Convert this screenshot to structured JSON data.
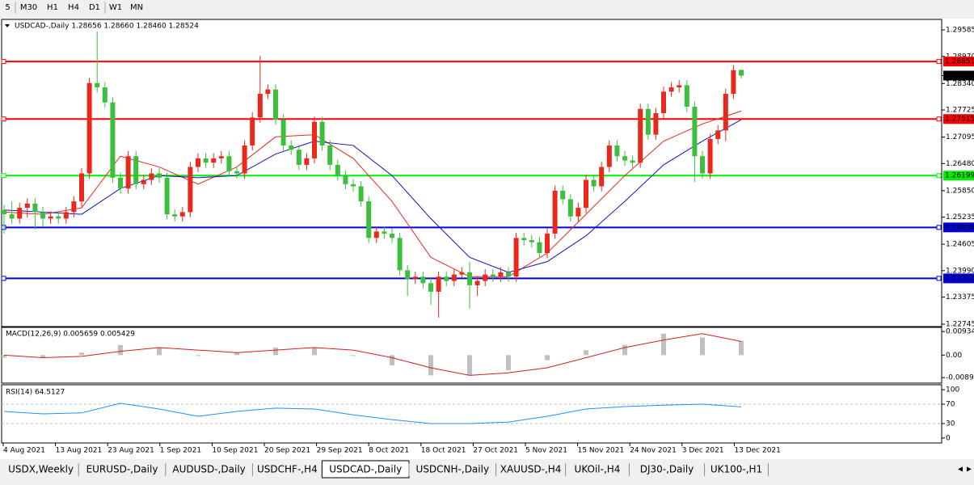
{
  "toolbar": [
    "5",
    "M30",
    "H1",
    "H4",
    "D1",
    "W1",
    "MN"
  ],
  "tabs": [
    {
      "label": "USDX,Weekly"
    },
    {
      "label": "EURUSD-,Daily"
    },
    {
      "label": "AUDUSD-,Daily"
    },
    {
      "label": "USDCHF-,H4"
    },
    {
      "label": "USDCAD-,Daily",
      "active": true
    },
    {
      "label": "USDCNH-,Daily"
    },
    {
      "label": "XAUUSD-,H4"
    },
    {
      "label": "UKOil-,H4"
    },
    {
      "label": "DJ30-,Daily"
    },
    {
      "label": "UK100-,H1"
    }
  ],
  "chart_data": {
    "type": "candlestick",
    "title": "USDCAD-,Daily  1.28656 1.28660 1.28460 1.28524",
    "up_color": "#e8291c",
    "down_color": "#3cbf3c",
    "ylim": [
      1.2269,
      1.2983
    ],
    "yticks": [
      1.29585,
      {
        "value": 1.2897,
        "label": "1.28970"
      },
      {
        "value": 1.2834,
        "label": "1.28340"
      },
      1.27725,
      1.27095,
      {
        "value": 1.2648,
        "label": "1.26480"
      },
      {
        "value": 1.2585,
        "label": "1.25850"
      },
      1.25235,
      {
        "value": 1.24605,
        "label": "1.24605"
      },
      {
        "value": 1.2399,
        "label": "1.23990"
      },
      1.23375,
      1.22745
    ],
    "levels": [
      {
        "value": 1.28851,
        "color": "#ff0000"
      },
      {
        "value": 1.27515,
        "color": "#ff0000"
      },
      {
        "value": 1.26199,
        "color": "#00ee00"
      },
      {
        "value": 1.24995,
        "color": "#0000dd"
      },
      {
        "value": 1.2381,
        "label": "1.23810",
        "color": "#0000dd"
      }
    ],
    "current_price": 1.28524,
    "xlabels": [
      "4 Aug 2021",
      "13 Aug 2021",
      "23 Aug 2021",
      "1 Sep 2021",
      "10 Sep 2021",
      "20 Sep 2021",
      "29 Sep 2021",
      "8 Oct 2021",
      "18 Oct 2021",
      "27 Oct 2021",
      "5 Nov 2021",
      "15 Nov 2021",
      "24 Nov 2021",
      "3 Dec 2021",
      "13 Dec 2021"
    ],
    "candles": [
      [
        1.254,
        1.2552,
        1.2485,
        1.253
      ],
      [
        1.253,
        1.256,
        1.2508,
        1.252
      ],
      [
        1.252,
        1.2557,
        1.2508,
        1.2545
      ],
      [
        1.2545,
        1.2567,
        1.2523,
        1.2555
      ],
      [
        1.2555,
        1.2567,
        1.2495,
        1.2535
      ],
      [
        1.2535,
        1.2547,
        1.25,
        1.252
      ],
      [
        1.252,
        1.2537,
        1.2508,
        1.2525
      ],
      [
        1.2525,
        1.2537,
        1.2508,
        1.252
      ],
      [
        1.252,
        1.2547,
        1.2508,
        1.2535
      ],
      [
        1.2535,
        1.2572,
        1.2523,
        1.256
      ],
      [
        1.256,
        1.2637,
        1.2548,
        1.2625
      ],
      [
        1.2625,
        1.2847,
        1.2613,
        1.2835
      ],
      [
        1.2835,
        1.2955,
        1.2813,
        1.2825
      ],
      [
        1.2825,
        1.2837,
        1.2778,
        1.279
      ],
      [
        1.279,
        1.2802,
        1.2603,
        1.2615
      ],
      [
        1.2615,
        1.2627,
        1.2578,
        1.259
      ],
      [
        1.259,
        1.2677,
        1.2578,
        1.2665
      ],
      [
        1.2665,
        1.2677,
        1.2588,
        1.26
      ],
      [
        1.26,
        1.2622,
        1.2588,
        1.261
      ],
      [
        1.261,
        1.2637,
        1.2598,
        1.2625
      ],
      [
        1.2625,
        1.2637,
        1.2603,
        1.2615
      ],
      [
        1.2615,
        1.2627,
        1.2518,
        1.253
      ],
      [
        1.253,
        1.2542,
        1.2513,
        1.2525
      ],
      [
        1.2525,
        1.2547,
        1.2513,
        1.2535
      ],
      [
        1.2535,
        1.2652,
        1.2523,
        1.264
      ],
      [
        1.264,
        1.2672,
        1.2628,
        1.266
      ],
      [
        1.266,
        1.2672,
        1.2638,
        1.265
      ],
      [
        1.265,
        1.2672,
        1.2638,
        1.266
      ],
      [
        1.266,
        1.2677,
        1.2648,
        1.2665
      ],
      [
        1.2665,
        1.2677,
        1.2618,
        1.263
      ],
      [
        1.263,
        1.2642,
        1.2613,
        1.2625
      ],
      [
        1.2625,
        1.2702,
        1.2613,
        1.269
      ],
      [
        1.269,
        1.2767,
        1.2678,
        1.2755
      ],
      [
        1.2755,
        1.2898,
        1.2743,
        1.281
      ],
      [
        1.281,
        1.2832,
        1.2798,
        1.282
      ],
      [
        1.282,
        1.2832,
        1.2738,
        1.275
      ],
      [
        1.275,
        1.2762,
        1.2678,
        1.269
      ],
      [
        1.269,
        1.2702,
        1.2668,
        1.268
      ],
      [
        1.268,
        1.2692,
        1.2633,
        1.2645
      ],
      [
        1.2645,
        1.2672,
        1.2633,
        1.266
      ],
      [
        1.266,
        1.2757,
        1.2648,
        1.2745
      ],
      [
        1.2745,
        1.2757,
        1.2678,
        1.269
      ],
      [
        1.269,
        1.2702,
        1.2633,
        1.2645
      ],
      [
        1.2645,
        1.2657,
        1.2608,
        1.262
      ],
      [
        1.262,
        1.2632,
        1.2588,
        1.26
      ],
      [
        1.26,
        1.2612,
        1.2583,
        1.2595
      ],
      [
        1.2595,
        1.2607,
        1.2548,
        1.256
      ],
      [
        1.256,
        1.2572,
        1.2463,
        1.2475
      ],
      [
        1.2475,
        1.2502,
        1.2463,
        1.249
      ],
      [
        1.249,
        1.2502,
        1.2473,
        1.2485
      ],
      [
        1.2485,
        1.2497,
        1.2463,
        1.2475
      ],
      [
        1.2475,
        1.2487,
        1.2388,
        1.24
      ],
      [
        1.24,
        1.2412,
        1.234,
        1.238
      ],
      [
        1.238,
        1.2397,
        1.2368,
        1.2385
      ],
      [
        1.2385,
        1.2397,
        1.2358,
        1.237
      ],
      [
        1.237,
        1.2382,
        1.232,
        1.235
      ],
      [
        1.235,
        1.2397,
        1.229,
        1.2385
      ],
      [
        1.2385,
        1.2397,
        1.2363,
        1.2375
      ],
      [
        1.2375,
        1.2402,
        1.2363,
        1.239
      ],
      [
        1.239,
        1.2407,
        1.2378,
        1.2395
      ],
      [
        1.2395,
        1.242,
        1.231,
        1.2365
      ],
      [
        1.2365,
        1.2387,
        1.234,
        1.2375
      ],
      [
        1.2375,
        1.2402,
        1.2363,
        1.239
      ],
      [
        1.239,
        1.2402,
        1.2373,
        1.2385
      ],
      [
        1.2385,
        1.2407,
        1.2373,
        1.2395
      ],
      [
        1.2395,
        1.2407,
        1.2373,
        1.2385
      ],
      [
        1.2385,
        1.2487,
        1.2373,
        1.2475
      ],
      [
        1.2475,
        1.2487,
        1.2458,
        1.247
      ],
      [
        1.247,
        1.2482,
        1.2453,
        1.2465
      ],
      [
        1.2465,
        1.2477,
        1.2428,
        1.244
      ],
      [
        1.244,
        1.2497,
        1.2428,
        1.2485
      ],
      [
        1.2485,
        1.2597,
        1.2473,
        1.2585
      ],
      [
        1.2585,
        1.2597,
        1.2553,
        1.2565
      ],
      [
        1.2565,
        1.2577,
        1.2513,
        1.2525
      ],
      [
        1.2525,
        1.2557,
        1.2513,
        1.2545
      ],
      [
        1.2545,
        1.2622,
        1.2533,
        1.261
      ],
      [
        1.261,
        1.2622,
        1.2583,
        1.2595
      ],
      [
        1.2595,
        1.2652,
        1.2583,
        1.264
      ],
      [
        1.264,
        1.2702,
        1.2628,
        1.269
      ],
      [
        1.269,
        1.2702,
        1.2653,
        1.2665
      ],
      [
        1.2665,
        1.2677,
        1.2643,
        1.2655
      ],
      [
        1.2655,
        1.2667,
        1.2638,
        1.265
      ],
      [
        1.265,
        1.2787,
        1.2638,
        1.2775
      ],
      [
        1.2775,
        1.2787,
        1.2703,
        1.2715
      ],
      [
        1.2715,
        1.2777,
        1.2703,
        1.2765
      ],
      [
        1.2765,
        1.2827,
        1.2753,
        1.2815
      ],
      [
        1.2815,
        1.2837,
        1.2803,
        1.2825
      ],
      [
        1.2825,
        1.2842,
        1.2813,
        1.283
      ],
      [
        1.283,
        1.2842,
        1.2768,
        1.278
      ],
      [
        1.278,
        1.2792,
        1.2605,
        1.2665
      ],
      [
        1.2665,
        1.2677,
        1.2613,
        1.2625
      ],
      [
        1.2625,
        1.2717,
        1.2613,
        1.2705
      ],
      [
        1.2705,
        1.2737,
        1.2693,
        1.2725
      ],
      [
        1.2725,
        1.2822,
        1.27,
        1.281
      ],
      [
        1.281,
        1.2877,
        1.2798,
        1.2865
      ],
      [
        1.28656,
        1.2866,
        1.2846,
        1.28524
      ]
    ],
    "series": [
      {
        "color": "#e8291c",
        "values": [
          1.2535,
          1.253,
          1.2545,
          1.2665,
          1.264,
          1.26,
          1.264,
          1.271,
          1.2715,
          1.266,
          1.256,
          1.243,
          1.2385,
          1.2385,
          1.244,
          1.253,
          1.262,
          1.27,
          1.274,
          1.277
        ]
      },
      {
        "color": "#1010c0",
        "values": [
          1.254,
          1.2535,
          1.253,
          1.259,
          1.262,
          1.2615,
          1.262,
          1.267,
          1.27,
          1.269,
          1.262,
          1.252,
          1.243,
          1.2395,
          1.242,
          1.248,
          1.256,
          1.2645,
          1.27,
          1.275
        ]
      }
    ],
    "macd": {
      "label": "MACD(12,26,9) 0.005659 0.005429",
      "ylim": [
        -0.0111,
        0.011
      ],
      "yticks": [
        0.009345,
        {
          "value": 0,
          "label": "0.00"
        },
        {
          "value": -0.0089,
          "label": "-0.00890"
        }
      ],
      "histogram": {
        "color": "#c0c0c0",
        "values": [
          -0.001,
          -0.001,
          0.001,
          0.004,
          0.003,
          0.0,
          0.001,
          0.003,
          0.003,
          0.0,
          -0.004,
          -0.008,
          -0.008,
          -0.006,
          -0.002,
          0.002,
          0.004,
          0.0085,
          0.007,
          0.005659
        ]
      },
      "signal": {
        "color": "#cc2020",
        "values": [
          0.0,
          -0.001,
          -0.0005,
          0.0015,
          0.003,
          0.002,
          0.001,
          0.002,
          0.003,
          0.002,
          -0.001,
          -0.005,
          -0.008,
          -0.007,
          -0.005,
          -0.001,
          0.003,
          0.006,
          0.0085,
          0.005429
        ]
      }
    },
    "rsi": {
      "label": "RSI(14) 64.5127",
      "ylim": [
        -10.3,
        110.3
      ],
      "yticks": [
        100,
        70,
        30,
        0
      ],
      "levels": [
        70,
        30
      ],
      "color": "#1e90ff",
      "values": [
        55,
        50,
        52,
        72,
        60,
        45,
        55,
        62,
        60,
        48,
        38,
        30,
        30,
        33,
        45,
        60,
        65,
        68,
        70,
        64.5127
      ]
    }
  }
}
